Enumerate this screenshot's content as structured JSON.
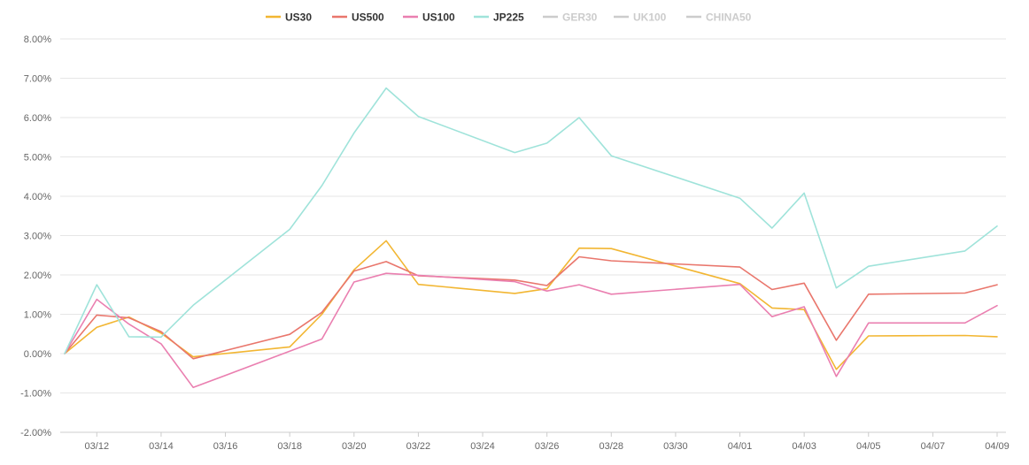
{
  "chart_data": {
    "type": "line",
    "x_dates": [
      "03/11",
      "03/12",
      "03/13",
      "03/14",
      "03/15",
      "03/18",
      "03/19",
      "03/20",
      "03/21",
      "03/22",
      "03/25",
      "03/26",
      "03/27",
      "03/28",
      "04/01",
      "04/02",
      "04/03",
      "04/04",
      "04/05",
      "04/08",
      "04/09"
    ],
    "x_ticks": [
      "03/12",
      "03/14",
      "03/16",
      "03/18",
      "03/20",
      "03/22",
      "03/24",
      "03/26",
      "03/28",
      "03/30",
      "04/01",
      "04/03",
      "04/05",
      "04/07",
      "04/09"
    ],
    "y_ticks": [
      "8.00%",
      "7.00%",
      "6.00%",
      "5.00%",
      "4.00%",
      "3.00%",
      "2.00%",
      "1.00%",
      "0.00%",
      "-1.00%",
      "-2.00%"
    ],
    "ylim": [
      -2,
      8
    ],
    "y_unit": "%",
    "grid": true,
    "legend_position": "top-center",
    "series": [
      {
        "name": "US30",
        "color": "#f2b632",
        "visible": true,
        "values": [
          0,
          0.67,
          0.93,
          0.52,
          -0.08,
          0.17,
          1.0,
          2.13,
          2.87,
          1.76,
          1.53,
          1.65,
          2.68,
          2.67,
          1.78,
          1.16,
          1.12,
          -0.4,
          0.45,
          0.46,
          0.43
        ]
      },
      {
        "name": "US500",
        "color": "#e9766c",
        "visible": true,
        "values": [
          0,
          0.98,
          0.91,
          0.56,
          -0.13,
          0.49,
          1.05,
          2.1,
          2.34,
          1.98,
          1.87,
          1.73,
          2.46,
          2.36,
          2.2,
          1.63,
          1.79,
          0.34,
          1.51,
          1.54,
          1.75
        ]
      },
      {
        "name": "US100",
        "color": "#ea7fb0",
        "visible": true,
        "values": [
          0,
          1.38,
          0.75,
          0.25,
          -0.86,
          0.06,
          0.37,
          1.82,
          2.04,
          1.99,
          1.83,
          1.59,
          1.75,
          1.51,
          1.76,
          0.94,
          1.19,
          -0.58,
          0.78,
          0.78,
          1.22
        ]
      },
      {
        "name": "JP225",
        "color": "#9fe3da",
        "visible": true,
        "values": [
          0,
          1.75,
          0.43,
          0.42,
          1.23,
          3.16,
          4.27,
          5.61,
          6.75,
          6.03,
          5.11,
          5.35,
          6.0,
          5.03,
          3.95,
          3.19,
          4.08,
          1.67,
          2.22,
          2.61,
          3.24
        ]
      },
      {
        "name": "GER30",
        "color": "#cccccc",
        "visible": false,
        "values": []
      },
      {
        "name": "UK100",
        "color": "#cccccc",
        "visible": false,
        "values": []
      },
      {
        "name": "CHINA50",
        "color": "#cccccc",
        "visible": false,
        "values": []
      }
    ]
  }
}
